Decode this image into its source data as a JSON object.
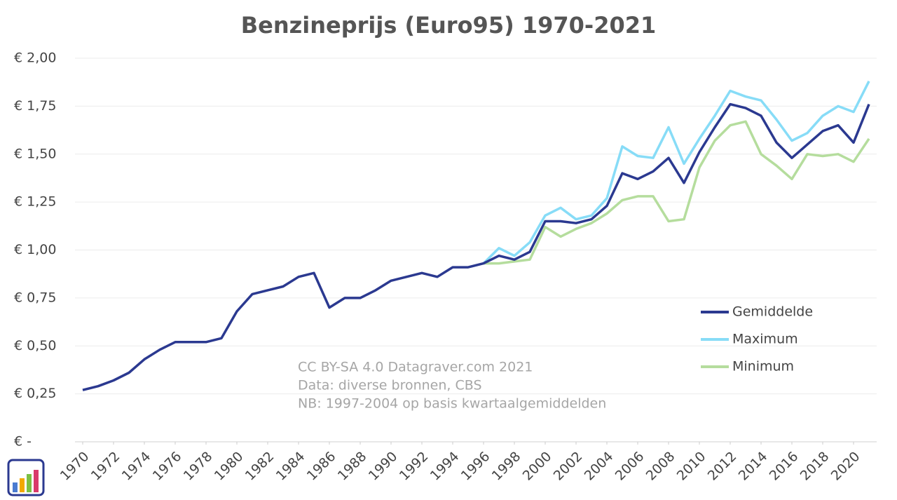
{
  "chart_data": {
    "type": "line",
    "title": "Benzineprijs (Euro95) 1970-2021",
    "x": [
      1970,
      1971,
      1972,
      1973,
      1974,
      1975,
      1976,
      1977,
      1978,
      1979,
      1980,
      1981,
      1982,
      1983,
      1984,
      1985,
      1986,
      1987,
      1988,
      1989,
      1990,
      1991,
      1992,
      1993,
      1994,
      1995,
      1996,
      1997,
      1998,
      1999,
      2000,
      2001,
      2002,
      2003,
      2004,
      2005,
      2006,
      2007,
      2008,
      2009,
      2010,
      2011,
      2012,
      2013,
      2014,
      2015,
      2016,
      2017,
      2018,
      2019,
      2020,
      2021
    ],
    "series": [
      {
        "name": "Gemiddelde",
        "color": "#2b3990",
        "values": [
          0.27,
          0.29,
          0.32,
          0.36,
          0.43,
          0.48,
          0.52,
          0.52,
          0.52,
          0.54,
          0.68,
          0.77,
          0.79,
          0.81,
          0.86,
          0.88,
          0.7,
          0.75,
          0.75,
          0.79,
          0.84,
          0.86,
          0.88,
          0.86,
          0.91,
          0.91,
          0.93,
          0.97,
          0.95,
          0.99,
          1.15,
          1.15,
          1.14,
          1.16,
          1.23,
          1.4,
          1.37,
          1.41,
          1.48,
          1.35,
          1.51,
          1.64,
          1.76,
          1.74,
          1.7,
          1.56,
          1.48,
          1.55,
          1.62,
          1.65,
          1.56,
          1.76
        ]
      },
      {
        "name": "Maximum",
        "color": "#87dcf7",
        "values": [
          null,
          null,
          null,
          null,
          null,
          null,
          null,
          null,
          null,
          null,
          null,
          null,
          null,
          null,
          null,
          null,
          null,
          null,
          null,
          null,
          null,
          null,
          null,
          null,
          null,
          null,
          0.93,
          1.01,
          0.97,
          1.04,
          1.18,
          1.22,
          1.16,
          1.18,
          1.27,
          1.54,
          1.49,
          1.48,
          1.64,
          1.45,
          1.58,
          1.7,
          1.83,
          1.8,
          1.78,
          1.68,
          1.57,
          1.61,
          1.7,
          1.75,
          1.72,
          1.88
        ]
      },
      {
        "name": "Minimum",
        "color": "#b5dd9d",
        "values": [
          null,
          null,
          null,
          null,
          null,
          null,
          null,
          null,
          null,
          null,
          null,
          null,
          null,
          null,
          null,
          null,
          null,
          null,
          null,
          null,
          null,
          null,
          null,
          null,
          null,
          null,
          0.93,
          0.93,
          0.94,
          0.95,
          1.12,
          1.07,
          1.11,
          1.14,
          1.19,
          1.26,
          1.28,
          1.28,
          1.15,
          1.16,
          1.43,
          1.57,
          1.65,
          1.67,
          1.5,
          1.44,
          1.37,
          1.5,
          1.49,
          1.5,
          1.46,
          1.58
        ]
      }
    ],
    "xlim": [
      1969.5,
      2021.5
    ],
    "xticks": [
      1970,
      1972,
      1974,
      1976,
      1978,
      1980,
      1982,
      1984,
      1986,
      1988,
      1990,
      1992,
      1994,
      1996,
      1998,
      2000,
      2002,
      2004,
      2006,
      2008,
      2010,
      2012,
      2014,
      2016,
      2018,
      2020
    ],
    "ylim": [
      0,
      2
    ],
    "yticks": [
      {
        "value": 0,
        "label": "€ -"
      },
      {
        "value": 0.25,
        "label": "€ 0,25"
      },
      {
        "value": 0.5,
        "label": "€ 0,50"
      },
      {
        "value": 0.75,
        "label": "€ 0,75"
      },
      {
        "value": 1,
        "label": "€ 1,00"
      },
      {
        "value": 1.25,
        "label": "€ 1,25"
      },
      {
        "value": 1.5,
        "label": "€ 1,50"
      },
      {
        "value": 1.75,
        "label": "€ 1,75"
      },
      {
        "value": 2,
        "label": "€ 2,00"
      }
    ],
    "grid": true,
    "legend": "right",
    "annotations": [
      "CC BY-SA 4.0 Datagraver.com 2021",
      "Data: diverse bronnen, CBS",
      "NB: 1997-2004 op basis kwartaalgemiddelden"
    ]
  }
}
